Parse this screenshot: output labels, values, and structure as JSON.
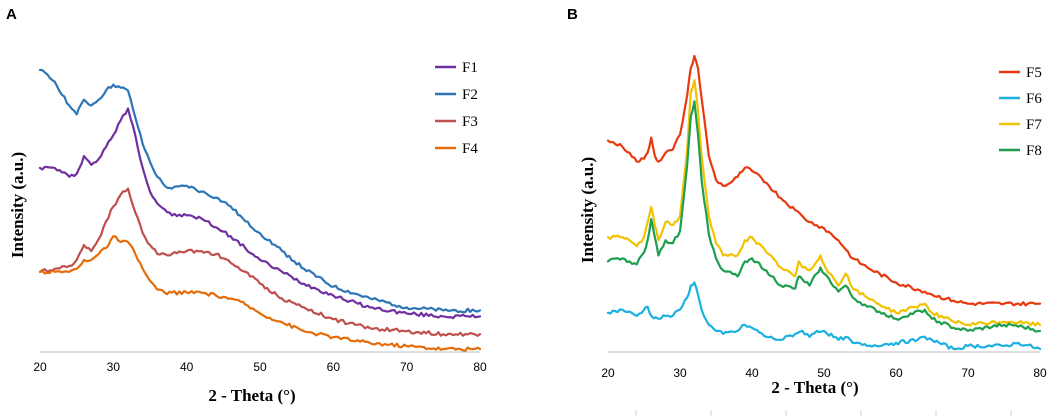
{
  "chart_data": [
    {
      "type": "line",
      "panel": "A",
      "xlabel": "2 - Theta (°)",
      "ylabel": "Intensity (a.u.)",
      "xlim": [
        20,
        80
      ],
      "ylim": [
        0,
        100
      ],
      "xticks": [
        20,
        30,
        40,
        50,
        60,
        70,
        80
      ],
      "grid": false,
      "legend_position": "top-right",
      "series": [
        {
          "name": "F1",
          "color": "#7030a0",
          "x": [
            20,
            22,
            24,
            25,
            26,
            27,
            28,
            29,
            30,
            31,
            32,
            33,
            34,
            35,
            36,
            37,
            38,
            40,
            42,
            44,
            46,
            48,
            50,
            53,
            56,
            60,
            65,
            70,
            75,
            80
          ],
          "y": [
            62,
            62,
            59,
            60,
            66,
            63,
            65,
            69,
            73,
            78,
            82,
            73,
            62,
            54,
            50,
            48,
            46,
            46,
            45,
            42,
            39,
            35,
            31,
            27,
            23,
            19,
            15,
            13,
            12,
            12
          ]
        },
        {
          "name": "F2",
          "color": "#2e75b6",
          "x": [
            20,
            22,
            24,
            25,
            26,
            27,
            28,
            29,
            30,
            31,
            32,
            33,
            34,
            35,
            36,
            37,
            38,
            40,
            42,
            44,
            46,
            48,
            50,
            53,
            56,
            60,
            65,
            70,
            75,
            80
          ],
          "y": [
            95,
            91,
            83,
            80,
            85,
            83,
            85,
            88,
            90,
            89,
            88,
            79,
            70,
            64,
            59,
            56,
            55,
            56,
            54,
            52,
            49,
            44,
            40,
            34,
            28,
            22,
            18,
            15,
            14,
            14
          ]
        },
        {
          "name": "F3",
          "color": "#c0504d",
          "x": [
            20,
            22,
            24,
            25,
            26,
            27,
            28,
            29,
            30,
            31,
            32,
            33,
            34,
            35,
            36,
            37,
            38,
            40,
            42,
            44,
            46,
            48,
            50,
            53,
            56,
            60,
            65,
            70,
            75,
            80
          ],
          "y": [
            27,
            28,
            29,
            31,
            36,
            34,
            38,
            44,
            49,
            53,
            55,
            47,
            40,
            36,
            33,
            33,
            33,
            34,
            34,
            33,
            30,
            27,
            23,
            18,
            15,
            11,
            8,
            7,
            6,
            6
          ]
        },
        {
          "name": "F4",
          "color": "#e46c0a",
          "x": [
            20,
            22,
            24,
            25,
            26,
            27,
            28,
            29,
            30,
            31,
            32,
            33,
            34,
            35,
            36,
            37,
            38,
            40,
            42,
            44,
            46,
            48,
            50,
            53,
            56,
            60,
            65,
            70,
            75,
            80
          ],
          "y": [
            27,
            27,
            27,
            28,
            31,
            31,
            33,
            35,
            39,
            37,
            37,
            33,
            28,
            24,
            21,
            20,
            20,
            20,
            20,
            19,
            18,
            16,
            13,
            10,
            7,
            5,
            3,
            2,
            1,
            1
          ]
        }
      ],
      "legend": [
        "F1",
        "F2",
        "F3",
        "F4"
      ]
    },
    {
      "type": "line",
      "panel": "B",
      "xlabel": "2 - Theta (°)",
      "ylabel": "Intensity (a.u.)",
      "xlim": [
        20,
        80
      ],
      "ylim": [
        0,
        100
      ],
      "xticks": [
        20,
        30,
        40,
        50,
        60,
        70,
        80
      ],
      "grid": false,
      "legend_position": "top-right",
      "series": [
        {
          "name": "F5",
          "color": "#e8390e",
          "x": [
            20,
            22,
            23,
            24,
            25,
            25.5,
            26,
            26.5,
            27,
            28,
            29,
            30,
            31,
            31.5,
            32,
            32.5,
            33,
            34,
            35,
            36,
            37,
            38,
            39,
            40,
            42,
            44,
            46,
            47,
            48,
            49,
            50,
            52,
            53,
            54,
            56,
            60,
            64,
            65,
            68,
            70,
            75,
            80
          ],
          "y": [
            70,
            68,
            66,
            63,
            64,
            66,
            71,
            65,
            63,
            66,
            67,
            72,
            85,
            94,
            98,
            94,
            84,
            65,
            57,
            55,
            56,
            58,
            61,
            60,
            56,
            51,
            47,
            45,
            43,
            42,
            41,
            37,
            34,
            31,
            28,
            23,
            20,
            19,
            17,
            16,
            16,
            16
          ]
        },
        {
          "name": "F6",
          "color": "#1ab0e0",
          "x": [
            20,
            22,
            24,
            25,
            25.5,
            26,
            27,
            28,
            29,
            30,
            31,
            31.5,
            32,
            32.5,
            33,
            34,
            35,
            36,
            38,
            39,
            40,
            42,
            44,
            46,
            47,
            48,
            49,
            50,
            52,
            53,
            54,
            56,
            60,
            63,
            64,
            65,
            68,
            70,
            75,
            77,
            80
          ],
          "y": [
            13,
            14,
            12,
            14,
            15,
            12,
            11,
            12,
            12,
            14,
            18,
            22,
            23,
            19,
            14,
            9,
            7,
            6,
            7,
            9,
            8,
            5,
            4,
            6,
            7,
            5,
            7,
            7,
            4,
            5,
            3,
            2,
            3,
            4,
            5,
            4,
            1,
            2,
            2,
            3,
            1
          ]
        },
        {
          "name": "F7",
          "color": "#f2c200",
          "x": [
            20,
            22,
            23,
            24,
            25,
            25.5,
            26,
            26.5,
            27,
            28,
            29,
            30,
            31,
            31.5,
            32,
            32.5,
            33,
            34,
            35,
            36,
            38,
            39,
            40,
            42,
            44,
            46,
            46.5,
            47,
            48,
            49,
            49.5,
            50,
            52,
            53,
            54,
            56,
            60,
            64,
            65,
            68,
            70,
            75,
            76,
            80
          ],
          "y": [
            38,
            38,
            37,
            35,
            38,
            43,
            48,
            42,
            37,
            43,
            42,
            45,
            67,
            86,
            90,
            80,
            65,
            45,
            36,
            32,
            32,
            37,
            38,
            33,
            28,
            25,
            30,
            28,
            27,
            30,
            32,
            29,
            22,
            26,
            21,
            18,
            13,
            16,
            13,
            10,
            9,
            10,
            10,
            9
          ]
        },
        {
          "name": "F8",
          "color": "#1e9e4f",
          "x": [
            20,
            22,
            23,
            24,
            25,
            25.5,
            26,
            26.5,
            27,
            28,
            29,
            30,
            31,
            31.5,
            32,
            32.5,
            33,
            34,
            35,
            36,
            38,
            39,
            40,
            42,
            44,
            46,
            46.5,
            47,
            48,
            49,
            49.5,
            50,
            52,
            53,
            54,
            56,
            60,
            64,
            65,
            68,
            70,
            75,
            76,
            80
          ],
          "y": [
            30,
            31,
            30,
            29,
            33,
            37,
            44,
            38,
            32,
            37,
            36,
            40,
            62,
            78,
            83,
            72,
            57,
            39,
            31,
            27,
            25,
            30,
            31,
            27,
            22,
            21,
            25,
            24,
            22,
            26,
            28,
            26,
            20,
            22,
            18,
            15,
            11,
            14,
            11,
            8,
            7,
            9,
            9,
            7
          ]
        }
      ],
      "legend": [
        "F5",
        "F6",
        "F7",
        "F8"
      ]
    }
  ],
  "panels": {
    "a": {
      "letter": "A"
    },
    "b": {
      "letter": "B"
    }
  }
}
